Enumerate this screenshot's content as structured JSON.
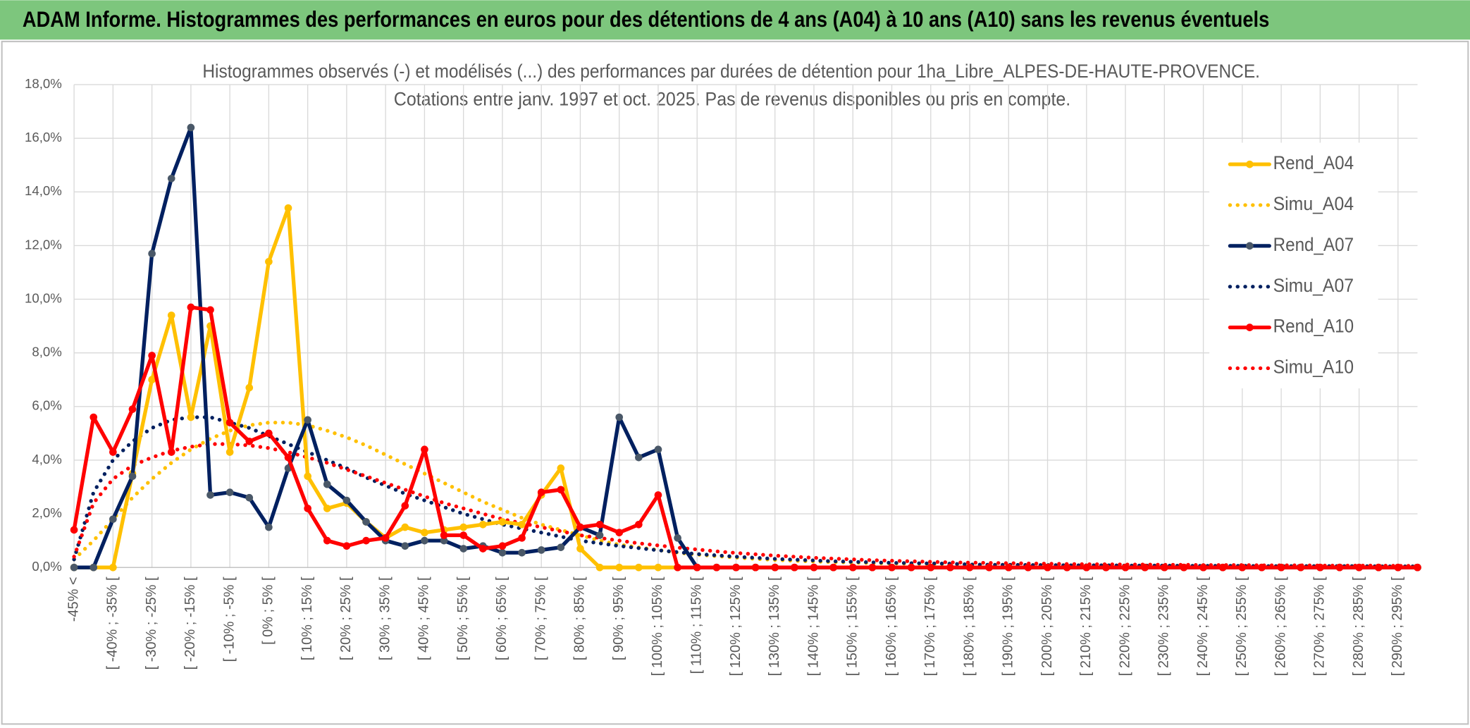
{
  "header": {
    "title": "ADAM Informe. Histogrammes des performances en euros pour des détentions de 4 ans (A04) à 10 ans (A10) sans les revenus éventuels"
  },
  "chart_data": {
    "type": "line",
    "title": "Histogrammes observés (-) et modélisés (...) des performances par durées de détention pour 1ha_Libre_ALPES-DE-HAUTE-PROVENCE.",
    "subtitle": "Cotations entre janv. 1997 et oct. 2025. Pas de revenus disponibles ou pris en compte.",
    "categories": [
      "-45% <",
      null,
      "[ -40% ; -35% [",
      null,
      "[ -30% ; -25% [",
      null,
      "[ -20% ; -15% [",
      null,
      "[ -10% ; -5% [",
      null,
      "[ 0% ; 5% [",
      null,
      "[ 10% ; 15% [",
      null,
      "[ 20% ; 25% [",
      null,
      "[ 30% ; 35% [",
      null,
      "[ 40% ; 45% [",
      null,
      "[ 50% ; 55% [",
      null,
      "[ 60% ; 65% [",
      null,
      "[ 70% ; 75% [",
      null,
      "[ 80% ; 85% [",
      null,
      "[ 90% ; 95% [",
      null,
      "[ 100% ; 105% [",
      null,
      "[ 110% ; 115% [",
      null,
      "[ 120% ; 125% [",
      null,
      "[ 130% ; 135% [",
      null,
      "[ 140% ; 145% [",
      null,
      "[ 150% ; 155% [",
      null,
      "[ 160% ; 165% [",
      null,
      "[ 170% ; 175% [",
      null,
      "[ 180% ; 185% [",
      null,
      "[ 190% ; 195% [",
      null,
      "[ 200% ; 205% [",
      null,
      "[ 210% ; 215% [",
      null,
      "[ 220% ; 225% [",
      null,
      "[ 230% ; 235% [",
      null,
      "[ 240% ; 245% [",
      null,
      "[ 250% ; 255% [",
      null,
      "[ 260% ; 265% [",
      null,
      "[ 270% ; 275% [",
      null,
      "[ 280% ; 285% [",
      null,
      "[ 290% ; 295% [",
      null
    ],
    "series": [
      {
        "name": "Rend_A04",
        "color": "#ffc000",
        "style": "solid",
        "markers": true,
        "values": [
          0,
          0,
          0,
          3.5,
          7.0,
          9.4,
          5.6,
          9.0,
          4.3,
          6.7,
          11.4,
          13.4,
          3.4,
          2.2,
          2.4,
          1.7,
          1.1,
          1.5,
          1.3,
          1.4,
          1.5,
          1.6,
          1.7,
          1.6,
          2.7,
          3.7,
          0.7,
          0,
          0,
          0,
          0,
          0,
          0,
          0,
          0,
          0,
          0,
          0,
          0,
          0,
          0,
          0,
          0,
          0,
          0,
          0,
          0,
          0,
          0,
          0,
          0,
          0,
          0,
          0,
          0,
          0,
          0,
          0,
          0,
          0,
          0,
          0,
          0,
          0,
          0,
          0,
          0,
          0,
          0,
          0
        ]
      },
      {
        "name": "Simu_A04",
        "color": "#ffc000",
        "style": "dotted",
        "markers": false,
        "values": [
          0.3,
          1.0,
          1.8,
          2.6,
          3.3,
          3.9,
          4.4,
          4.8,
          5.1,
          5.3,
          5.4,
          5.4,
          5.3,
          5.1,
          4.85,
          4.55,
          4.2,
          3.85,
          3.5,
          3.15,
          2.8,
          2.45,
          2.15,
          1.85,
          1.6,
          1.4,
          1.2,
          1.0,
          0.85,
          0.75,
          0.65,
          0.55,
          0.48,
          0.42,
          0.37,
          0.32,
          0.28,
          0.25,
          0.22,
          0.2,
          0.18,
          0.16,
          0.15,
          0.14,
          0.13,
          0.12,
          0.11,
          0.1,
          0.1,
          0.09,
          0.09,
          0.08,
          0.08,
          0.08,
          0.07,
          0.07,
          0.07,
          0.06,
          0.06,
          0.06,
          0.06,
          0.05,
          0.05,
          0.05,
          0.05,
          0.05,
          0.05,
          0.04,
          0.04,
          0.04
        ]
      },
      {
        "name": "Rend_A07",
        "color": "#002060",
        "style": "solid",
        "markers": true,
        "marker_color": "#4a5868",
        "values": [
          0,
          0,
          1.8,
          3.4,
          11.7,
          14.5,
          16.4,
          2.7,
          2.8,
          2.6,
          1.5,
          3.7,
          5.5,
          3.1,
          2.5,
          1.7,
          1.0,
          0.8,
          1.0,
          1.0,
          0.7,
          0.8,
          0.55,
          0.55,
          0.65,
          0.75,
          1.5,
          1.2,
          5.6,
          4.1,
          4.4,
          1.1,
          0,
          0,
          0,
          0,
          0,
          0,
          0,
          0,
          0,
          0,
          0,
          0,
          0,
          0,
          0,
          0,
          0,
          0,
          0,
          0,
          0,
          0,
          0,
          0,
          0,
          0,
          0,
          0,
          0,
          0,
          0,
          0,
          0,
          0,
          0,
          0,
          0,
          0
        ]
      },
      {
        "name": "Simu_A07",
        "color": "#002060",
        "style": "dotted",
        "markers": false,
        "values": [
          0.3,
          2.8,
          4.0,
          4.7,
          5.2,
          5.5,
          5.6,
          5.6,
          5.4,
          5.2,
          4.9,
          4.6,
          4.3,
          4.0,
          3.7,
          3.35,
          3.05,
          2.75,
          2.5,
          2.25,
          2.0,
          1.8,
          1.6,
          1.45,
          1.3,
          1.15,
          1.0,
          0.9,
          0.8,
          0.72,
          0.64,
          0.57,
          0.5,
          0.45,
          0.4,
          0.36,
          0.32,
          0.29,
          0.26,
          0.23,
          0.21,
          0.19,
          0.17,
          0.16,
          0.15,
          0.14,
          0.11,
          0.1,
          0.1,
          0.09,
          0.09,
          0.08,
          0.08,
          0.08,
          0.07,
          0.07,
          0.07,
          0.06,
          0.06,
          0.06,
          0.06,
          0.05,
          0.05,
          0.05,
          0.05,
          0.05,
          0.05,
          0.04,
          0.04,
          0.04
        ]
      },
      {
        "name": "Rend_A10",
        "color": "#ff0000",
        "style": "solid",
        "markers": true,
        "values": [
          1.4,
          5.6,
          4.3,
          5.9,
          7.9,
          4.3,
          9.7,
          9.6,
          5.4,
          4.7,
          5.0,
          4.1,
          2.2,
          1.0,
          0.8,
          1.0,
          1.1,
          2.3,
          4.4,
          1.2,
          1.2,
          0.7,
          0.8,
          1.1,
          2.8,
          2.9,
          1.5,
          1.6,
          1.3,
          1.6,
          2.7,
          0,
          0,
          0,
          0,
          0,
          0,
          0,
          0,
          0,
          0,
          0,
          0,
          0,
          0,
          0,
          0,
          0,
          0,
          0,
          0,
          0,
          0,
          0,
          0,
          0,
          0,
          0,
          0,
          0,
          0,
          0,
          0,
          0,
          0,
          0,
          0,
          0,
          0,
          0
        ]
      },
      {
        "name": "Simu_A10",
        "color": "#ff0000",
        "style": "dotted",
        "markers": false,
        "values": [
          0.4,
          2.4,
          3.3,
          3.8,
          4.1,
          4.35,
          4.5,
          4.6,
          4.6,
          4.55,
          4.45,
          4.3,
          4.1,
          3.9,
          3.65,
          3.4,
          3.15,
          2.9,
          2.65,
          2.4,
          2.2,
          2.0,
          1.8,
          1.65,
          1.5,
          1.35,
          1.2,
          1.1,
          1.0,
          0.9,
          0.82,
          0.74,
          0.67,
          0.6,
          0.54,
          0.49,
          0.44,
          0.4,
          0.36,
          0.33,
          0.3,
          0.27,
          0.25,
          0.23,
          0.21,
          0.19,
          0.18,
          0.17,
          0.16,
          0.15,
          0.14,
          0.13,
          0.12,
          0.12,
          0.11,
          0.11,
          0.1,
          0.1,
          0.09,
          0.09,
          0.09,
          0.08,
          0.08,
          0.08,
          0.07,
          0.07,
          0.07,
          0.07,
          0.06,
          0.06
        ]
      }
    ],
    "ylim": [
      0,
      18
    ],
    "yticks": [
      {
        "value": 0,
        "label": "0,0%"
      },
      {
        "value": 2,
        "label": "2,0%"
      },
      {
        "value": 4,
        "label": "4,0%"
      },
      {
        "value": 6,
        "label": "6,0%"
      },
      {
        "value": 8,
        "label": "8,0%"
      },
      {
        "value": 10,
        "label": "10,0%"
      },
      {
        "value": 12,
        "label": "12,0%"
      },
      {
        "value": 14,
        "label": "14,0%"
      },
      {
        "value": 16,
        "label": "16,0%"
      },
      {
        "value": 18,
        "label": "18,0%"
      }
    ],
    "grid": true,
    "xgrid": true,
    "legend": "right"
  }
}
